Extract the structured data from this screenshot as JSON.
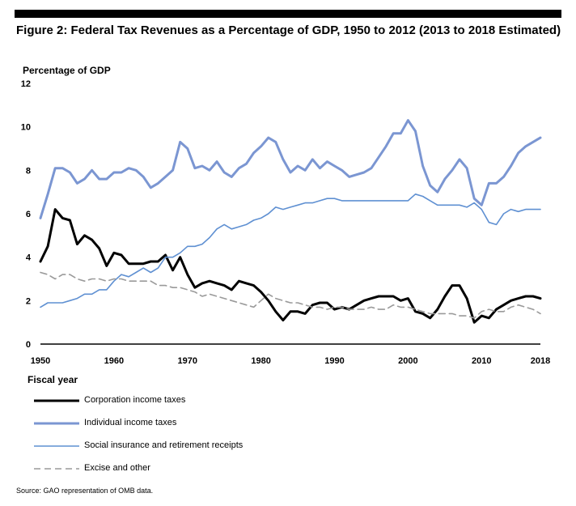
{
  "figure": {
    "title": "Figure 2: Federal Tax Revenues as a Percentage of GDP, 1950 to 2012 (2013 to 2018 Estimated)",
    "source": "Source: GAO representation of OMB data."
  },
  "chart_data": {
    "type": "line",
    "title": "Figure 2: Federal Tax Revenues as a Percentage of GDP, 1950 to 2012 (2013 to 2018 Estimated)",
    "ylabel": "Percentage of GDP",
    "xlabel": "Fiscal year",
    "xlim": [
      1950,
      2018
    ],
    "ylim": [
      0,
      12
    ],
    "xticks": [
      "1950",
      "1960",
      "1970",
      "1980",
      "1990",
      "2000",
      "2010",
      "2018"
    ],
    "yticks": [
      "0",
      "2",
      "4",
      "6",
      "8",
      "10",
      "12"
    ],
    "grid": false,
    "legend_position": "bottom",
    "x": [
      1950,
      1951,
      1952,
      1953,
      1954,
      1955,
      1956,
      1957,
      1958,
      1959,
      1960,
      1961,
      1962,
      1963,
      1964,
      1965,
      1966,
      1967,
      1968,
      1969,
      1970,
      1971,
      1972,
      1973,
      1974,
      1975,
      1976,
      1977,
      1978,
      1979,
      1980,
      1981,
      1982,
      1983,
      1984,
      1985,
      1986,
      1987,
      1988,
      1989,
      1990,
      1991,
      1992,
      1993,
      1994,
      1995,
      1996,
      1997,
      1998,
      1999,
      2000,
      2001,
      2002,
      2003,
      2004,
      2005,
      2006,
      2007,
      2008,
      2009,
      2010,
      2011,
      2012,
      2013,
      2014,
      2015,
      2016,
      2017,
      2018
    ],
    "series": [
      {
        "name": "Corporation income taxes",
        "color": "#000000",
        "style": "solid-thick",
        "values": [
          3.8,
          4.5,
          6.2,
          5.8,
          5.7,
          4.6,
          5.0,
          4.8,
          4.4,
          3.6,
          4.2,
          4.1,
          3.7,
          3.7,
          3.7,
          3.8,
          3.8,
          4.1,
          3.4,
          4.0,
          3.2,
          2.6,
          2.8,
          2.9,
          2.8,
          2.7,
          2.5,
          2.9,
          2.8,
          2.7,
          2.4,
          2.0,
          1.5,
          1.1,
          1.5,
          1.5,
          1.4,
          1.8,
          1.9,
          1.9,
          1.6,
          1.7,
          1.6,
          1.8,
          2.0,
          2.1,
          2.2,
          2.2,
          2.2,
          2.0,
          2.1,
          1.5,
          1.4,
          1.2,
          1.6,
          2.2,
          2.7,
          2.7,
          2.1,
          1.0,
          1.3,
          1.2,
          1.6,
          1.8,
          2.0,
          2.1,
          2.2,
          2.2,
          2.1
        ]
      },
      {
        "name": "Individual income taxes",
        "color": "#7b96d2",
        "style": "solid-thick",
        "values": [
          5.8,
          6.9,
          8.1,
          8.1,
          7.9,
          7.4,
          7.6,
          8.0,
          7.6,
          7.6,
          7.9,
          7.9,
          8.1,
          8.0,
          7.7,
          7.2,
          7.4,
          7.7,
          8.0,
          9.3,
          9.0,
          8.1,
          8.2,
          8.0,
          8.4,
          7.9,
          7.7,
          8.1,
          8.3,
          8.8,
          9.1,
          9.5,
          9.3,
          8.5,
          7.9,
          8.2,
          8.0,
          8.5,
          8.1,
          8.4,
          8.2,
          8.0,
          7.7,
          7.8,
          7.9,
          8.1,
          8.6,
          9.1,
          9.7,
          9.7,
          10.3,
          9.8,
          8.2,
          7.3,
          7.0,
          7.6,
          8.0,
          8.5,
          8.1,
          6.7,
          6.4,
          7.4,
          7.4,
          7.7,
          8.2,
          8.8,
          9.1,
          9.3,
          9.5
        ]
      },
      {
        "name": "Social insurance and retirement receipts",
        "color": "#5f90d2",
        "style": "solid-thin",
        "values": [
          1.7,
          1.9,
          1.9,
          1.9,
          2.0,
          2.1,
          2.3,
          2.3,
          2.5,
          2.5,
          2.9,
          3.2,
          3.1,
          3.3,
          3.5,
          3.3,
          3.5,
          4.0,
          4.0,
          4.2,
          4.5,
          4.5,
          4.6,
          4.9,
          5.3,
          5.5,
          5.3,
          5.4,
          5.5,
          5.7,
          5.8,
          6.0,
          6.3,
          6.2,
          6.3,
          6.4,
          6.5,
          6.5,
          6.6,
          6.7,
          6.7,
          6.6,
          6.6,
          6.6,
          6.6,
          6.6,
          6.6,
          6.6,
          6.6,
          6.6,
          6.6,
          6.9,
          6.8,
          6.6,
          6.4,
          6.4,
          6.4,
          6.4,
          6.3,
          6.5,
          6.2,
          5.6,
          5.5,
          6.0,
          6.2,
          6.1,
          6.2,
          6.2,
          6.2
        ]
      },
      {
        "name": "Excise and other",
        "color": "#9a9a9a",
        "style": "dashed",
        "values": [
          3.3,
          3.2,
          3.0,
          3.2,
          3.2,
          3.0,
          2.9,
          3.0,
          3.0,
          2.9,
          3.0,
          3.0,
          2.9,
          2.9,
          2.9,
          2.9,
          2.7,
          2.7,
          2.6,
          2.6,
          2.5,
          2.4,
          2.2,
          2.3,
          2.2,
          2.1,
          2.0,
          1.9,
          1.8,
          1.7,
          2.0,
          2.3,
          2.1,
          2.0,
          1.9,
          1.9,
          1.8,
          1.7,
          1.7,
          1.6,
          1.7,
          1.7,
          1.6,
          1.6,
          1.6,
          1.7,
          1.6,
          1.6,
          1.8,
          1.7,
          1.7,
          1.6,
          1.5,
          1.4,
          1.4,
          1.4,
          1.4,
          1.3,
          1.3,
          1.2,
          1.5,
          1.6,
          1.5,
          1.5,
          1.7,
          1.8,
          1.7,
          1.6,
          1.4
        ]
      }
    ]
  }
}
